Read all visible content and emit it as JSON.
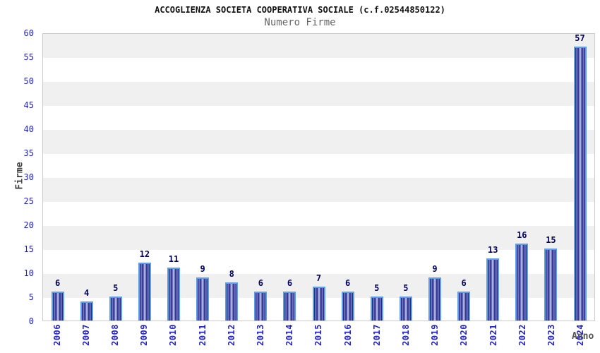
{
  "chart_data": {
    "type": "bar",
    "title": "ACCOGLIENZA SOCIETA COOPERATIVA SOCIALE (c.f.02544850122)",
    "subtitle": "Numero Firme",
    "xlabel": "Anno",
    "ylabel": "Firme",
    "categories": [
      "2006",
      "2007",
      "2008",
      "2009",
      "2010",
      "2011",
      "2012",
      "2013",
      "2014",
      "2015",
      "2016",
      "2017",
      "2018",
      "2019",
      "2020",
      "2021",
      "2022",
      "2023",
      "2024"
    ],
    "values": [
      6,
      4,
      5,
      12,
      11,
      9,
      8,
      6,
      6,
      7,
      6,
      5,
      5,
      9,
      6,
      13,
      16,
      15,
      57
    ],
    "ylim": [
      0,
      60
    ],
    "yticks": [
      0,
      5,
      10,
      15,
      20,
      25,
      30,
      35,
      40,
      45,
      50,
      55,
      60
    ],
    "grid": "alternating horizontal bands every 5 units",
    "legend": "none",
    "colors": {
      "bar_fill_dark": "#0f0f6e",
      "bar_fill_light": "#b8bfe4",
      "bar_border": "#5c9ee8",
      "value_label": "#000066",
      "tick_label": "#2222cc",
      "axis_title": "#444444",
      "subtitle": "#666666",
      "title": "#111111",
      "band_gray": "#f0f0f0",
      "band_white": "#ffffff",
      "plot_border": "#cccccc",
      "background": "#ffffff"
    }
  }
}
